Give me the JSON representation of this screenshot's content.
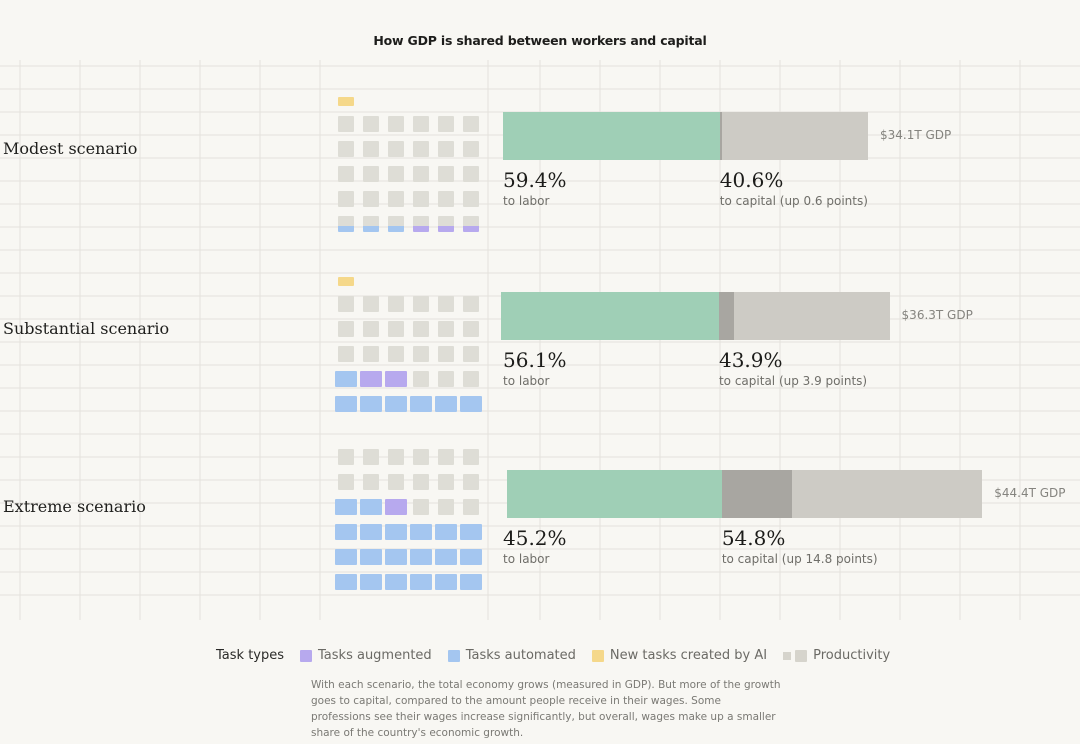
{
  "chart_data": {
    "type": "bar",
    "title": "How GDP is shared between workers and capital",
    "stacked": true,
    "series_names": [
      "to labor",
      "to capital"
    ],
    "scenarios": [
      {
        "name": "Modest scenario",
        "labor_pct": 59.4,
        "labor_label": "59.4%",
        "labor_sub": "to labor",
        "capital_pct": 40.6,
        "capital_label": "40.6%",
        "capital_sub": "to capital (up 0.6 points)",
        "capital_increase_points": 0.6,
        "gdp_trillions": 34.1,
        "gdp_label": "$34.1T GDP",
        "waffle_rows": [
          [
            "new",
            "",
            "",
            "",
            "",
            ""
          ],
          [
            "prod",
            "prod",
            "prod",
            "prod",
            "prod",
            "prod"
          ],
          [
            "prod",
            "prod",
            "prod",
            "prod",
            "prod",
            "prod"
          ],
          [
            "prod",
            "prod",
            "prod",
            "prod",
            "prod",
            "prod"
          ],
          [
            "prod",
            "prod",
            "prod",
            "prod",
            "prod",
            "prod"
          ],
          [
            "prod-auto",
            "prod-auto",
            "prod-auto",
            "prod-aug",
            "prod-aug",
            "prod-aug"
          ]
        ]
      },
      {
        "name": "Substantial scenario",
        "labor_pct": 56.1,
        "labor_label": "56.1%",
        "labor_sub": "to labor",
        "capital_pct": 43.9,
        "capital_label": "43.9%",
        "capital_sub": "to capital (up 3.9 points)",
        "capital_increase_points": 3.9,
        "gdp_trillions": 36.3,
        "gdp_label": "$36.3T GDP",
        "waffle_rows": [
          [
            "new",
            "",
            "",
            "",
            "",
            ""
          ],
          [
            "prod",
            "prod",
            "prod",
            "prod",
            "prod",
            "prod"
          ],
          [
            "prod",
            "prod",
            "prod",
            "prod",
            "prod",
            "prod"
          ],
          [
            "prod",
            "prod",
            "prod",
            "prod",
            "prod",
            "prod"
          ],
          [
            "auto",
            "aug",
            "aug",
            "prod",
            "prod",
            "prod"
          ],
          [
            "auto",
            "auto",
            "auto",
            "auto",
            "auto",
            "auto"
          ]
        ]
      },
      {
        "name": "Extreme scenario",
        "labor_pct": 45.2,
        "labor_label": "45.2%",
        "labor_sub": "to labor",
        "capital_pct": 54.8,
        "capital_label": "54.8%",
        "capital_sub": "to capital (up 14.8 points)",
        "capital_increase_points": 14.8,
        "gdp_trillions": 44.4,
        "gdp_label": "$44.4T GDP",
        "waffle_rows": [
          [
            "prod",
            "prod",
            "prod",
            "prod",
            "prod",
            "prod"
          ],
          [
            "prod",
            "prod",
            "prod",
            "prod",
            "prod",
            "prod"
          ],
          [
            "auto",
            "auto",
            "aug",
            "prod",
            "prod",
            "prod"
          ],
          [
            "auto",
            "auto",
            "auto",
            "auto",
            "auto",
            "auto"
          ],
          [
            "auto",
            "auto",
            "auto",
            "auto",
            "auto",
            "auto"
          ],
          [
            "auto",
            "auto",
            "auto",
            "auto",
            "auto",
            "auto"
          ]
        ]
      }
    ],
    "baseline_capital_pct": 40.0
  },
  "legend": {
    "heading": "Task types",
    "items": [
      {
        "label": "Tasks augmented",
        "color": "#b7a9ee"
      },
      {
        "label": "Tasks automated",
        "color": "#a4c6f0"
      },
      {
        "label": "New tasks created by AI",
        "color": "#f5d88a"
      },
      {
        "label": "Productivity",
        "color": "#d6d4cc"
      }
    ]
  },
  "caption": "With each scenario, the total economy grows (measured in GDP). But more of the growth goes to capital, compared to the amount people receive in their wages. Some professions see their wages increase significantly, but overall, wages make up a smaller share of the country's economic growth.",
  "colors": {
    "labor": "#9fcfb6",
    "capital": "#cdcbc5",
    "capital_increase": "#a8a6a1",
    "productivity": "#deddd6",
    "augmented": "#b7a9ee",
    "automated": "#a4c6f0",
    "new_tasks": "#f5d88a",
    "grid": "#e4e2dc"
  }
}
